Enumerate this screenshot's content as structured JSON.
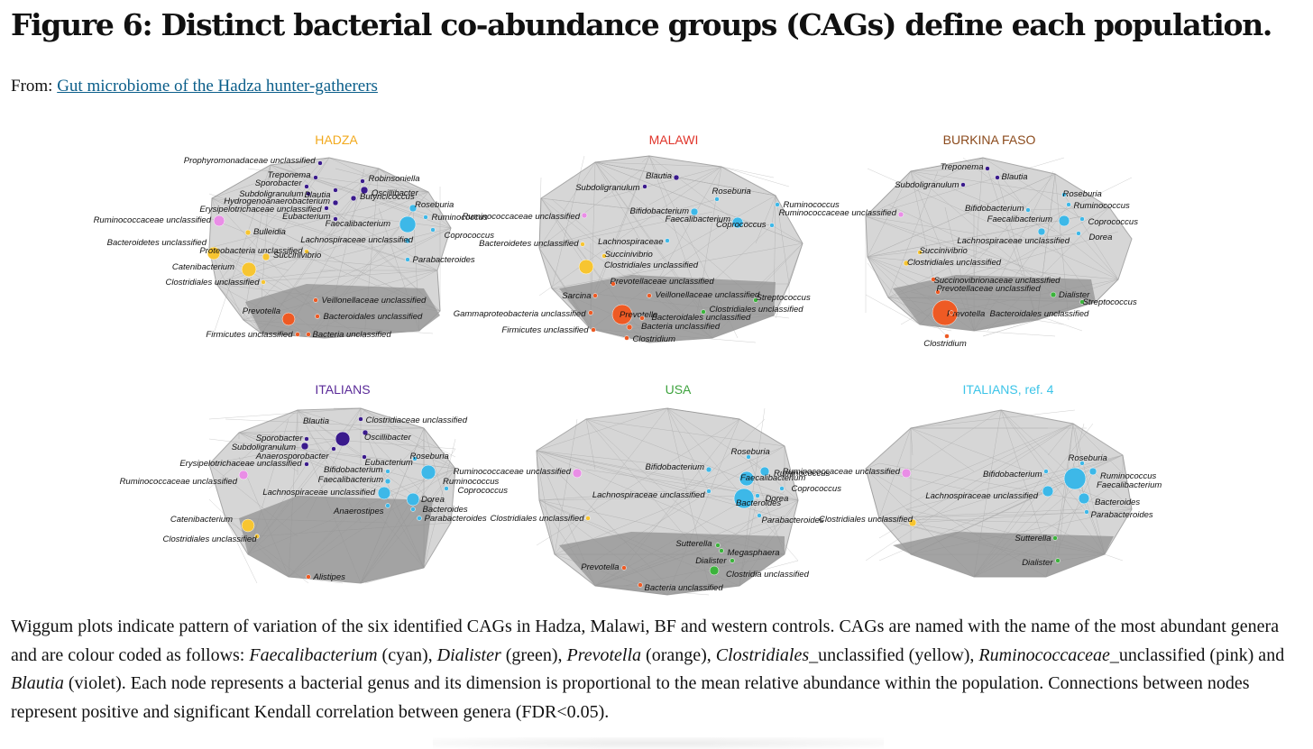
{
  "figure": {
    "title": "Figure 6: Distinct bacterial co-abundance groups (CAGs) define each population.",
    "from_label": "From:",
    "source_link": "Gut microbiome of the Hadza hunter-gatherers"
  },
  "colors": {
    "cyan": "#3db8e8",
    "green": "#3bb33b",
    "orange": "#ee5a24",
    "yellow": "#f7c531",
    "pink": "#e98ee6",
    "violet": "#3a1a8c",
    "network_fill": "#8a8a8a",
    "link": "#0b5e8a"
  },
  "panels": [
    {
      "title": "HADZA",
      "title_color": "#f2a91c",
      "nodes": [
        {
          "label": "Prophyromonadaceae unclassified",
          "c": "violet",
          "italic_part": "Prophyromonadaceae"
        },
        {
          "label": "Treponema",
          "c": "violet"
        },
        {
          "label": "Robinsoniella",
          "c": "violet"
        },
        {
          "label": "Sporobacter",
          "c": "violet"
        },
        {
          "label": "Oscillibacter",
          "c": "violet"
        },
        {
          "label": "Subdoligranulum",
          "c": "violet"
        },
        {
          "label": "Blautia",
          "c": "violet"
        },
        {
          "label": "Butyricicoccus",
          "c": "violet"
        },
        {
          "label": "Hydrogenoanaerobacterium",
          "c": "violet"
        },
        {
          "label": "Erysipelotrichaceae unclassified",
          "c": "violet"
        },
        {
          "label": "Roseburia",
          "c": "cyan"
        },
        {
          "label": "Eubacterium",
          "c": "violet"
        },
        {
          "label": "Ruminococcus",
          "c": "cyan"
        },
        {
          "label": "Ruminococcaceae unclassified",
          "c": "pink"
        },
        {
          "label": "Faecalibacterium",
          "c": "cyan"
        },
        {
          "label": "Bulleidia",
          "c": "yellow"
        },
        {
          "label": "Coprococcus",
          "c": "cyan"
        },
        {
          "label": "Bacteroidetes unclassified",
          "c": "yellow"
        },
        {
          "label": "Lachnospiraceae unclassified",
          "c": "cyan"
        },
        {
          "label": "Proteobacteria unclassified",
          "c": "yellow"
        },
        {
          "label": "Succinivibrio",
          "c": "yellow"
        },
        {
          "label": "Parabacteroides",
          "c": "cyan"
        },
        {
          "label": "Catenibacterium",
          "c": "yellow"
        },
        {
          "label": "Clostridiales unclassified",
          "c": "yellow"
        },
        {
          "label": "Veillonellaceae unclassified",
          "c": "orange"
        },
        {
          "label": "Prevotella",
          "c": "orange"
        },
        {
          "label": "Bacteroidales unclassified",
          "c": "orange"
        },
        {
          "label": "Firmicutes unclassified",
          "c": "orange"
        },
        {
          "label": "Bacteria unclassified",
          "c": "orange"
        }
      ]
    },
    {
      "title": "MALAWI",
      "title_color": "#e0342a",
      "nodes": [
        {
          "label": "Blautia",
          "c": "violet"
        },
        {
          "label": "Subdoligranulum",
          "c": "violet"
        },
        {
          "label": "Roseburia",
          "c": "cyan"
        },
        {
          "label": "Ruminococcus",
          "c": "cyan"
        },
        {
          "label": "Ruminococcaceae unclassified",
          "c": "pink"
        },
        {
          "label": "Bifidobacterium",
          "c": "cyan"
        },
        {
          "label": "Faecalibacterium",
          "c": "cyan"
        },
        {
          "label": "Coprococcus",
          "c": "cyan"
        },
        {
          "label": "Lachnospiraceae",
          "c": "cyan"
        },
        {
          "label": "Bacteroidetes unclassified",
          "c": "yellow"
        },
        {
          "label": "Succinivibrio",
          "c": "yellow"
        },
        {
          "label": "Clostridiales unclassified",
          "c": "yellow"
        },
        {
          "label": "Prevotellaceae unclassified",
          "c": "orange"
        },
        {
          "label": "Sarcina",
          "c": "orange"
        },
        {
          "label": "Veillonellaceae unclassified",
          "c": "orange"
        },
        {
          "label": "Streptococcus",
          "c": "green"
        },
        {
          "label": "Gammaproteobacteria unclassified",
          "c": "orange"
        },
        {
          "label": "Prevotella",
          "c": "orange"
        },
        {
          "label": "Bacteroidales unclassified",
          "c": "orange"
        },
        {
          "label": "Clostridiales unclassified",
          "c": "green"
        },
        {
          "label": "Firmicutes unclassified",
          "c": "orange"
        },
        {
          "label": "Bacteria unclassified",
          "c": "orange"
        },
        {
          "label": "Clostridium",
          "c": "orange"
        }
      ]
    },
    {
      "title": "BURKINA FASO",
      "title_color": "#8b4a1c",
      "nodes": [
        {
          "label": "Treponema",
          "c": "violet"
        },
        {
          "label": "Blautia",
          "c": "violet"
        },
        {
          "label": "Subdoligranulum",
          "c": "violet"
        },
        {
          "label": "Roseburia",
          "c": "cyan"
        },
        {
          "label": "Ruminococcus",
          "c": "cyan"
        },
        {
          "label": "Ruminococcaceae unclassified",
          "c": "pink"
        },
        {
          "label": "Bifidobacterium",
          "c": "cyan"
        },
        {
          "label": "Faecalibacterium",
          "c": "cyan"
        },
        {
          "label": "Coprococcus",
          "c": "cyan"
        },
        {
          "label": "Dorea",
          "c": "cyan"
        },
        {
          "label": "Lachnospiraceae unclassified",
          "c": "cyan"
        },
        {
          "label": "Succinivibrio",
          "c": "yellow"
        },
        {
          "label": "Clostridiales unclassified",
          "c": "yellow"
        },
        {
          "label": "Succinovibrionaceae unclassified",
          "c": "orange"
        },
        {
          "label": "Prevotellaceae unclassified",
          "c": "orange"
        },
        {
          "label": "Dialister",
          "c": "green"
        },
        {
          "label": "Streptococcus",
          "c": "green"
        },
        {
          "label": "Prevotella",
          "c": "orange"
        },
        {
          "label": "Bacteroidales unclassified",
          "c": "orange"
        },
        {
          "label": "Clostridium",
          "c": "orange"
        }
      ]
    },
    {
      "title": "ITALIANS",
      "title_color": "#5a2a98",
      "nodes": [
        {
          "label": "Blautia",
          "c": "violet"
        },
        {
          "label": "Clostridiaceae unclassified",
          "c": "violet"
        },
        {
          "label": "Sporobacter",
          "c": "violet"
        },
        {
          "label": "Oscillibacter",
          "c": "violet"
        },
        {
          "label": "Subdoligranulum",
          "c": "violet"
        },
        {
          "label": "Anaerosporobacter",
          "c": "violet"
        },
        {
          "label": "Eubacterium",
          "c": "violet"
        },
        {
          "label": "Roseburia",
          "c": "cyan"
        },
        {
          "label": "Erysipelotrichaceae unclassified",
          "c": "violet"
        },
        {
          "label": "Ruminococcaceae unclassified",
          "c": "pink"
        },
        {
          "label": "Bifidobacterium",
          "c": "cyan"
        },
        {
          "label": "Ruminococcus",
          "c": "cyan"
        },
        {
          "label": "Faecalibacterium",
          "c": "cyan"
        },
        {
          "label": "Coprococcus",
          "c": "cyan"
        },
        {
          "label": "Lachnospiraceae unclassified",
          "c": "cyan"
        },
        {
          "label": "Dorea",
          "c": "cyan"
        },
        {
          "label": "Anaerostipes",
          "c": "cyan"
        },
        {
          "label": "Bacteroides",
          "c": "cyan"
        },
        {
          "label": "Parabacteroides",
          "c": "cyan"
        },
        {
          "label": "Catenibacterium",
          "c": "yellow"
        },
        {
          "label": "Clostridiales unclassified",
          "c": "yellow"
        },
        {
          "label": "Alistipes",
          "c": "orange"
        }
      ]
    },
    {
      "title": "USA",
      "title_color": "#3ea33e",
      "nodes": [
        {
          "label": "Roseburia",
          "c": "cyan"
        },
        {
          "label": "Ruminococcaceae unclassified",
          "c": "pink"
        },
        {
          "label": "Bifidobacterium",
          "c": "cyan"
        },
        {
          "label": "Ruminococcus",
          "c": "cyan"
        },
        {
          "label": "Faecalibacterium",
          "c": "cyan"
        },
        {
          "label": "Coprococcus",
          "c": "cyan"
        },
        {
          "label": "Lachnospiraceae unclassified",
          "c": "cyan"
        },
        {
          "label": "Dorea",
          "c": "cyan"
        },
        {
          "label": "Bacteroides",
          "c": "cyan"
        },
        {
          "label": "Clostridiales unclassified",
          "c": "yellow"
        },
        {
          "label": "Parabacteroides",
          "c": "cyan"
        },
        {
          "label": "Sutterella",
          "c": "green"
        },
        {
          "label": "Megasphaera",
          "c": "green"
        },
        {
          "label": "Dialister",
          "c": "green"
        },
        {
          "label": "Prevotella",
          "c": "orange"
        },
        {
          "label": "Clostridia unclassified",
          "c": "green"
        },
        {
          "label": "Bacteria unclassified",
          "c": "orange"
        }
      ]
    },
    {
      "title": "ITALIANS, ref. 4",
      "title_color": "#3cc4e8",
      "nodes": [
        {
          "label": "Roseburia",
          "c": "cyan"
        },
        {
          "label": "Ruminococcaceae unclassified",
          "c": "pink"
        },
        {
          "label": "Bifidobacterium",
          "c": "cyan"
        },
        {
          "label": "Ruminococcus",
          "c": "cyan"
        },
        {
          "label": "Faecalibacterium",
          "c": "cyan"
        },
        {
          "label": "Lachnospiraceae unclassified",
          "c": "cyan"
        },
        {
          "label": "Bacteroides",
          "c": "cyan"
        },
        {
          "label": "Clostridiales unclassified",
          "c": "yellow"
        },
        {
          "label": "Parabacteroides",
          "c": "cyan"
        },
        {
          "label": "Sutterella",
          "c": "green"
        },
        {
          "label": "Dialister",
          "c": "green"
        }
      ]
    }
  ],
  "caption": {
    "p1": "Wiggum plots indicate pattern of variation of the six identified CAGs in Hadza, Malawi, BF and western controls. CAGs are named with the name of the most abundant genera and are colour coded as follows: ",
    "g1": "Faecalibacterium",
    "p2": " (cyan), ",
    "g2": "Dialister",
    "p3": " (green), ",
    "g3": "Prevotella",
    "p4": " (orange), ",
    "g4": "Clostridiales",
    "p5": "_unclassified (yellow), ",
    "g5": "Ruminococcaceae",
    "p6": "_unclassified (pink) and ",
    "g6": "Blautia",
    "p7": " (violet). Each node represents a bacterial genus and its dimension is proportional to the mean relative abundance within the population. Connections between nodes represent positive and significant Kendall correlation between genera (FDR<0.05)."
  }
}
